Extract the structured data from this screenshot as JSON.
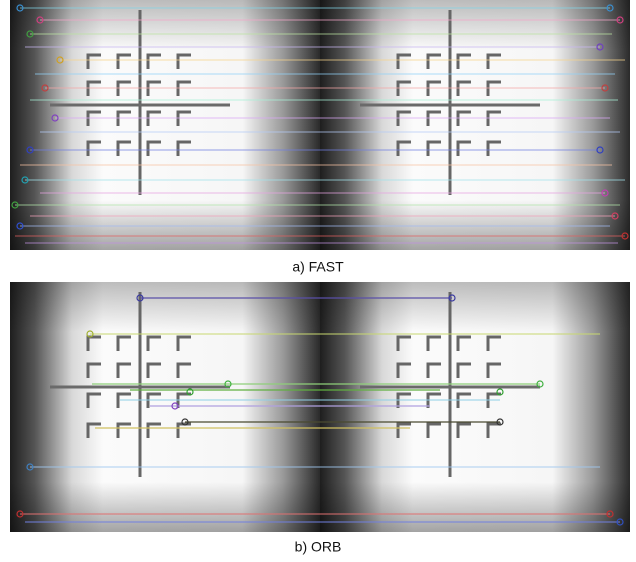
{
  "figure": {
    "captions": [
      "a) FAST",
      "b) ORB"
    ]
  }
}
